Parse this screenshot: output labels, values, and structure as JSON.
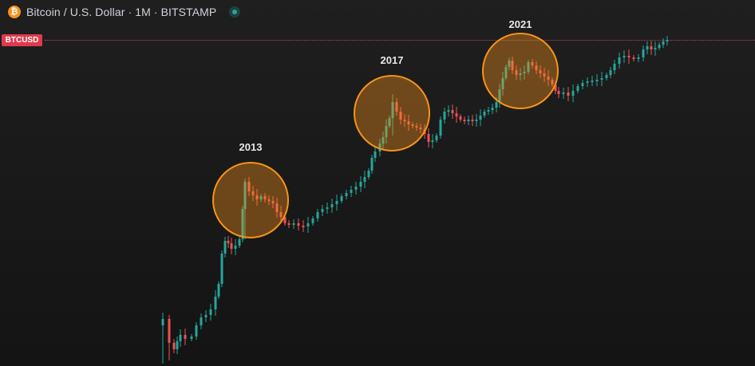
{
  "header": {
    "coin_symbol": "₿",
    "title": "Bitcoin / U.S. Dollar · 1M · BITSTAMP"
  },
  "price_tag": {
    "label": "BTCUSD",
    "color": "#e03a4e"
  },
  "colors": {
    "up": "#26a69a",
    "down": "#ef5350",
    "highlight": "#f7931a"
  },
  "chart_data": {
    "type": "candlestick",
    "scale": "log",
    "grid": false,
    "annotations": [
      "2013",
      "2017",
      "2021"
    ]
  }
}
